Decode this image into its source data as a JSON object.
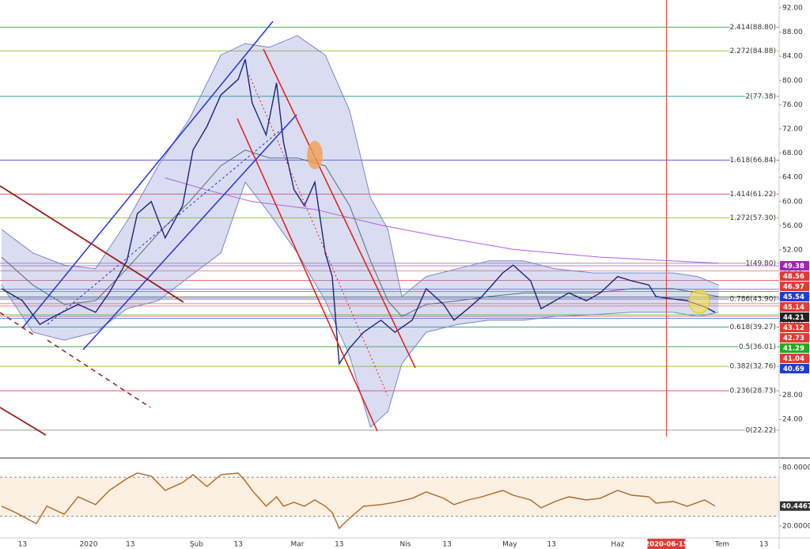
{
  "chart_data": [
    {
      "type": "line",
      "xlim": [
        -25.45,
        198.4
      ],
      "ylim": [
        17.75,
        93.3
      ],
      "xticks": [
        {
          "value": -19,
          "label": "13"
        },
        {
          "value": 0,
          "label": "2020"
        },
        {
          "value": 12,
          "label": "13"
        },
        {
          "value": 31,
          "label": "Şub"
        },
        {
          "value": 43,
          "label": "13"
        },
        {
          "value": 60,
          "label": "Mar"
        },
        {
          "value": 72,
          "label": "13"
        },
        {
          "value": 91,
          "label": "Nis"
        },
        {
          "value": 103,
          "label": "13"
        },
        {
          "value": 121,
          "label": "May"
        },
        {
          "value": 133,
          "label": "13"
        },
        {
          "value": 152,
          "label": "Haz"
        },
        {
          "value": 182,
          "label": "Tem"
        },
        {
          "value": 194,
          "label": "13"
        }
      ],
      "yticks": [
        {
          "value": 24,
          "label": "24.00"
        },
        {
          "value": 28,
          "label": "28.00"
        },
        {
          "value": 32,
          "label": "32.00"
        },
        {
          "value": 36,
          "label": "36.00"
        },
        {
          "value": 40,
          "label": "40.00"
        },
        {
          "value": 44,
          "label": "44.00"
        },
        {
          "value": 48,
          "label": "48.00"
        },
        {
          "value": 52,
          "label": "52.00"
        },
        {
          "value": 56,
          "label": "56.00"
        },
        {
          "value": 60,
          "label": "60.00"
        },
        {
          "value": 64,
          "label": "64.00"
        },
        {
          "value": 68,
          "label": "68.00"
        },
        {
          "value": 72,
          "label": "72.00"
        },
        {
          "value": 76,
          "label": "76.00"
        },
        {
          "value": 80,
          "label": "80.00"
        },
        {
          "value": 84,
          "label": "84.00"
        },
        {
          "value": 88,
          "label": "88.00"
        },
        {
          "value": 92,
          "label": "92.00"
        }
      ],
      "crosshair": {
        "value": 166,
        "label": "2020-06-15",
        "color": "#e53935"
      },
      "fib_levels": [
        {
          "label": "2.414(88.80)",
          "value": 88.8,
          "color": "#4caf50"
        },
        {
          "label": "2.272(84.88)",
          "value": 84.88,
          "color": "#9acd32"
        },
        {
          "label": "2(77.38)",
          "value": 77.38,
          "color": "#26a69a"
        },
        {
          "label": "1.618(66.84)",
          "value": 66.84,
          "color": "#5c5cd6"
        },
        {
          "label": "1.414(61.22)",
          "value": 61.22,
          "color": "#e05a6a"
        },
        {
          "label": "1.272(57.30)",
          "value": 57.3,
          "color": "#9acd32"
        },
        {
          "label": "1(49.80)",
          "value": 49.8,
          "color": "#9e9e9e"
        },
        {
          "label": "0.786(43.90)",
          "value": 43.9,
          "color": "#5c6bc0"
        },
        {
          "label": "0.618(39.27)",
          "value": 39.27,
          "color": "#26a69a"
        },
        {
          "label": "0.5(36.01)",
          "value": 36.01,
          "color": "#4caf50"
        },
        {
          "label": "0.382(32.76)",
          "value": 32.76,
          "color": "#9acd32"
        },
        {
          "label": "0.236(28.73)",
          "value": 28.73,
          "color": "#e05a6a"
        },
        {
          "label": "0(22.22)",
          "value": 22.22,
          "color": "#9e9e9e"
        }
      ],
      "price_tags": [
        {
          "value": 49.38,
          "color": "#9c27b0"
        },
        {
          "value": 48.56,
          "color": "#e53935"
        },
        {
          "value": 46.97,
          "color": "#e53935"
        },
        {
          "value": 45.54,
          "color": "#1e3cd6"
        },
        {
          "value": 45.14,
          "color": "#e53935"
        },
        {
          "value": 44.21,
          "color": "#222222"
        },
        {
          "value": 43.12,
          "color": "#e53935"
        },
        {
          "value": 42.73,
          "color": "#e53935"
        },
        {
          "value": 41.29,
          "color": "#22aa22"
        },
        {
          "value": 41.04,
          "color": "#e53935"
        },
        {
          "value": 40.69,
          "color": "#1e3cd6"
        }
      ],
      "series": [
        {
          "color": "#7986cb",
          "x": [
            -25,
            -16,
            -7,
            2,
            11,
            20,
            29,
            38,
            45,
            52,
            60,
            68,
            75,
            81,
            86,
            90,
            97,
            106,
            115,
            125,
            134,
            145,
            156,
            168,
            175,
            181
          ],
          "values": [
            55.4,
            51.5,
            49.5,
            48.9,
            56.7,
            65.9,
            73.7,
            84.2,
            86.1,
            85.5,
            87.4,
            84.2,
            75.0,
            60.6,
            55.4,
            44.3,
            47.6,
            48.9,
            50.2,
            50.2,
            48.9,
            48.2,
            48.2,
            48.2,
            47.6,
            46.2
          ]
        },
        {
          "color": "#7986cb",
          "x": [
            -25,
            -16,
            -7,
            2,
            11,
            20,
            29,
            38,
            45,
            52,
            60,
            68,
            75,
            81,
            86,
            90,
            97,
            106,
            115,
            125,
            134,
            145,
            156,
            168,
            175,
            181
          ],
          "values": [
            46.2,
            38.4,
            37.1,
            38.4,
            42.3,
            43.6,
            47.6,
            51.5,
            63.2,
            58.0,
            51.5,
            43.6,
            34.5,
            22.7,
            25.3,
            33.2,
            38.4,
            39.7,
            40.4,
            40.4,
            41.0,
            41.3,
            41.7,
            41.7,
            41.0,
            41.7
          ]
        },
        {
          "color": "#546e7a",
          "x": [
            -25,
            -16,
            -7,
            2,
            11,
            20,
            29,
            38,
            45,
            52,
            60,
            68,
            75,
            81,
            86,
            90,
            97,
            106,
            115,
            125,
            134,
            145,
            156,
            168,
            175,
            181
          ],
          "values": [
            50.8,
            46.2,
            43.0,
            43.6,
            48.9,
            54.7,
            60.0,
            65.9,
            68.5,
            67.2,
            67.2,
            65.9,
            59.3,
            50.2,
            43.6,
            41.0,
            43.0,
            43.6,
            44.3,
            44.9,
            44.9,
            44.9,
            45.6,
            45.6,
            44.9,
            44.3
          ]
        },
        {
          "color": "#b05cf0",
          "x": [
            22,
            34,
            47,
            65,
            84,
            102,
            122,
            147,
            181
          ],
          "values": [
            63.9,
            61.9,
            60.0,
            58.7,
            56.1,
            54.1,
            52.1,
            50.8,
            49.8
          ]
        },
        {
          "color": "#1a237e",
          "x": [
            -25,
            -19,
            -14,
            -10,
            -3,
            2,
            6,
            11,
            14,
            18,
            22,
            27,
            30,
            34,
            38,
            43,
            45,
            47,
            51,
            54,
            56,
            59,
            62,
            65,
            68,
            70,
            72,
            75,
            79,
            84,
            88,
            93,
            97,
            102,
            105,
            109,
            113,
            119,
            122,
            127,
            130,
            134,
            138,
            143,
            147,
            152,
            156,
            161,
            163,
            168,
            172,
            177,
            180
          ],
          "values": [
            45.6,
            43.6,
            39.7,
            41,
            43,
            41.7,
            45,
            50.2,
            58,
            60,
            54,
            59.3,
            68.5,
            72.4,
            77.6,
            80.2,
            83.5,
            76.3,
            71,
            79.6,
            69.8,
            62,
            59.3,
            63.2,
            51.5,
            47.6,
            33.2,
            35.8,
            38.4,
            40.4,
            38.4,
            40.4,
            45.6,
            43,
            40.4,
            42.3,
            44.3,
            48.2,
            49.5,
            46.9,
            42.3,
            43.6,
            44.9,
            43.6,
            44.9,
            47.6,
            46.9,
            46.2,
            44.3,
            43.9,
            43.6,
            42.6,
            41.7
          ]
        }
      ]
    },
    {
      "type": "line",
      "xlim": [
        -25.45,
        198.4
      ],
      "ylim": [
        8.6,
        88.9
      ],
      "yticks": [
        {
          "value": 20,
          "label": "20.0000"
        },
        {
          "value": 80,
          "label": "80.0000"
        }
      ],
      "band": [
        30,
        70
      ],
      "series": [
        {
          "color": "#b5651d",
          "x": [
            -25,
            -21,
            -15,
            -12,
            -7,
            -3,
            2,
            6,
            11,
            14,
            18,
            22,
            27,
            30,
            34,
            38,
            43,
            45,
            47,
            51,
            54,
            56,
            59,
            62,
            65,
            68,
            70,
            72,
            75,
            79,
            84,
            88,
            93,
            97,
            102,
            105,
            109,
            113,
            119,
            122,
            127,
            130,
            134,
            138,
            143,
            147,
            152,
            156,
            161,
            163,
            168,
            172,
            177,
            180
          ],
          "values": [
            40.3,
            33.8,
            22.4,
            40.3,
            32.1,
            50.0,
            41.9,
            56.5,
            68.6,
            74.3,
            71.1,
            56.5,
            64.6,
            72.7,
            60.5,
            72.7,
            74.3,
            66.2,
            56.5,
            40.3,
            50.0,
            40.3,
            44.3,
            40.3,
            46.7,
            40.3,
            33.8,
            17.6,
            28.1,
            40.3,
            41.9,
            44.3,
            48.4,
            54.9,
            48.4,
            41.9,
            46.7,
            50.0,
            56.5,
            51.6,
            46.7,
            38.6,
            45.1,
            50.0,
            46.7,
            48.4,
            56.5,
            51.6,
            50.0,
            43.5,
            45.1,
            40.3,
            46.7,
            40.4467
          ]
        }
      ]
    }
  ]
}
